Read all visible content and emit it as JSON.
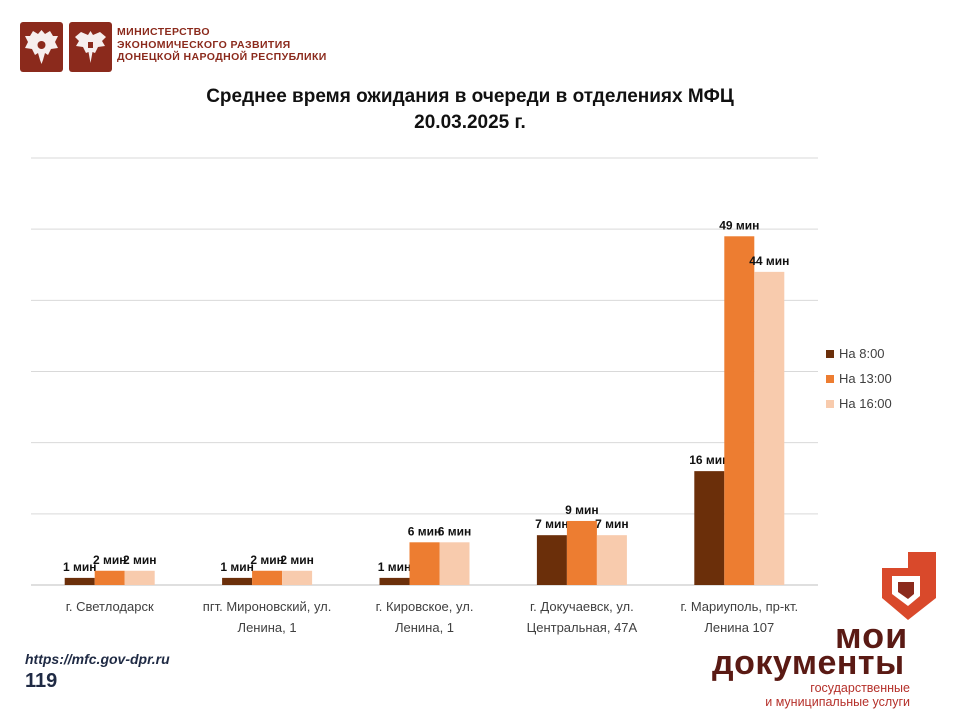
{
  "header": {
    "ministry_lines": [
      "МИНИСТЕРСТВО",
      "ЭКОНОМИЧЕСКОГО РАЗВИТИЯ",
      "ДОНЕЦКОЙ НАРОДНОЙ РЕСПУБЛИКИ"
    ],
    "emblem_left": "double-headed-eagle-icon",
    "emblem_right": "dpr-eagle-icon"
  },
  "chart_data": {
    "type": "bar",
    "title_lines": [
      "Среднее время ожидания в очереди в отделениях МФЦ",
      "20.03.2025   г."
    ],
    "xlabel": "",
    "ylabel": "",
    "ylim": [
      0,
      60
    ],
    "grid": true,
    "legend_position": "right",
    "categories": [
      [
        "г. Светлодарск"
      ],
      [
        "пгт. Мироновский, ул.",
        "Ленина, 1"
      ],
      [
        "г. Кировское, ул.",
        "Ленина, 1"
      ],
      [
        "г. Докучаевск, ул.",
        "Центральная, 47А"
      ],
      [
        "г. Мариуполь, пр-кт.",
        "Ленина 107"
      ]
    ],
    "series": [
      {
        "name": "На 8:00",
        "color": "#6b2f0a",
        "values": [
          1,
          1,
          1,
          7,
          16
        ],
        "labels": [
          "1 мин",
          "1 мин",
          "1 мин",
          "7 мин",
          "16 мин"
        ]
      },
      {
        "name": "На 13:00",
        "color": "#ed7d31",
        "values": [
          2,
          2,
          6,
          9,
          49
        ],
        "labels": [
          "2 мин",
          "2 мин",
          "6 мин",
          "9 мин",
          "49 мин"
        ]
      },
      {
        "name": "На 16:00",
        "color": "#f8cbad",
        "values": [
          2,
          2,
          6,
          7,
          44
        ],
        "labels": [
          "2 мин",
          "2 мин",
          "6 мин",
          "7 мин",
          "44 мин"
        ]
      }
    ]
  },
  "footer": {
    "website": "https://mfc.gov-dpr.ru",
    "page_number": "119"
  },
  "brand": {
    "line1": "мои",
    "line2": "документы",
    "subtitle_lines": [
      "государственные",
      "и муниципальные услуги"
    ],
    "logo_icon": "moi-dokumenty-logo-icon"
  }
}
